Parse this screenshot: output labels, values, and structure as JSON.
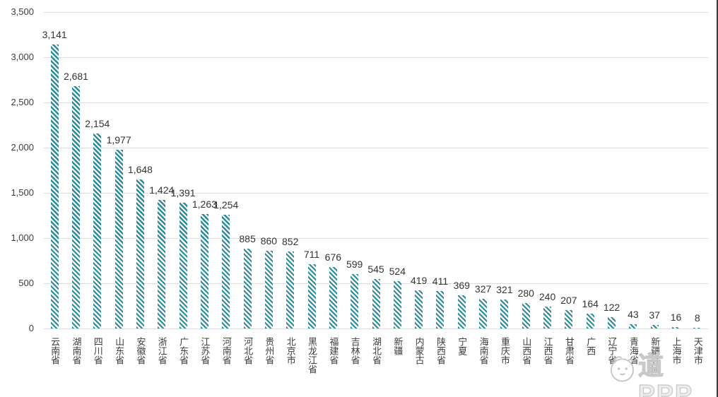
{
  "chart_data": {
    "type": "bar",
    "title": "",
    "xlabel": "",
    "ylabel": "",
    "categories": [
      "云南省",
      "湖南省",
      "四川省",
      "山东省",
      "安徽省",
      "浙江省",
      "广东省",
      "江苏省",
      "河南省",
      "河北省",
      "贵州省",
      "北京市",
      "黑龙江省",
      "福建省",
      "吉林省",
      "湖北省",
      "新疆",
      "内蒙古",
      "陕西省",
      "宁夏",
      "海南省",
      "重庆市",
      "山西省",
      "江西省",
      "甘肃省",
      "广西",
      "辽宁省",
      "青海省",
      "新疆兵团",
      "上海市",
      "天津市"
    ],
    "values": [
      3141,
      2681,
      2154,
      1977,
      1648,
      1424,
      1391,
      1263,
      1254,
      885,
      860,
      852,
      711,
      676,
      599,
      545,
      524,
      419,
      411,
      369,
      327,
      321,
      280,
      240,
      207,
      164,
      122,
      43,
      37,
      16,
      8
    ],
    "value_labels": [
      "3,141",
      "2,681",
      "2,154",
      "1,977",
      "1,648",
      "1,424",
      "1,391",
      "1,263",
      "1,254",
      "885",
      "860",
      "852",
      "711",
      "676",
      "599",
      "545",
      "524",
      "419",
      "411",
      "369",
      "327",
      "321",
      "280",
      "240",
      "207",
      "164",
      "122",
      "43",
      "37",
      "16",
      "8"
    ],
    "y_ticks": [
      {
        "label": "3,500",
        "value": 3500
      },
      {
        "label": "3,000",
        "value": 3000
      },
      {
        "label": "2,500",
        "value": 2500
      },
      {
        "label": "2,000",
        "value": 2000
      },
      {
        "label": "1,500",
        "value": 1500
      },
      {
        "label": "1,000",
        "value": 1000
      },
      {
        "label": "500",
        "value": 500
      },
      {
        "label": "0",
        "value": 0
      }
    ],
    "ylim": [
      0,
      3500
    ],
    "grid": true,
    "legend": "none",
    "bar_color": "#2b8a9e",
    "bar_pattern": "diagonal-hatch",
    "gridline_color": "#dcdcdc",
    "text_color": "#3d3d3d"
  },
  "watermark": {
    "text": "道PPP",
    "logo": "cartoon-face-logo"
  }
}
